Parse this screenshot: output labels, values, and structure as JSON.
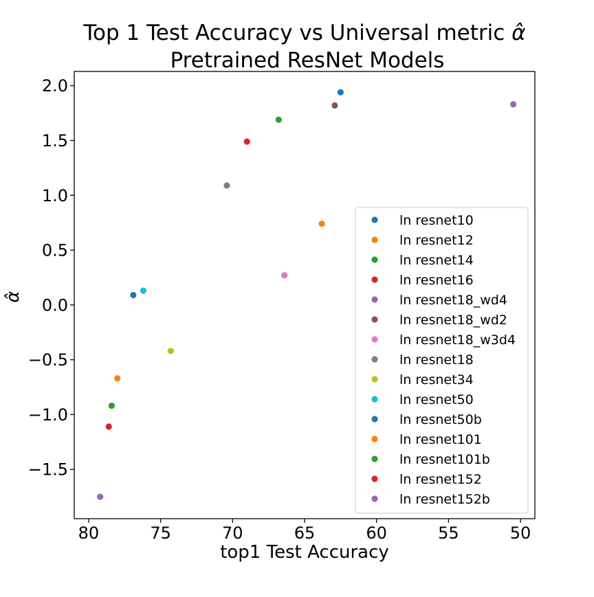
{
  "chart_data": {
    "type": "scatter",
    "title_line1": "Top 1 Test Accuracy vs Universal metric ",
    "title_symbol": "α̂",
    "title_line2": "Pretrained ResNet Models",
    "xlabel": "top1 Test Accuracy",
    "ylabel": "α̂",
    "xlim": [
      81.0,
      49.0
    ],
    "ylim": [
      -1.95,
      2.13
    ],
    "x_inverted": true,
    "xticks": [
      80,
      75,
      70,
      65,
      60,
      55,
      50
    ],
    "xtick_labels": [
      "80",
      "75",
      "70",
      "65",
      "60",
      "55",
      "50"
    ],
    "yticks": [
      2.0,
      1.5,
      1.0,
      0.5,
      0.0,
      -0.5,
      -1.0,
      -1.5
    ],
    "ytick_labels": [
      "2.0",
      "1.5",
      "1.0",
      "0.5",
      "0.0",
      "−0.5",
      "−1.0",
      "−1.5"
    ],
    "grid": false,
    "legend_position": "lower right",
    "series": [
      {
        "name": "ln resnet10",
        "color": "#1f77b4",
        "x": [
          62.5
        ],
        "y": [
          1.94
        ]
      },
      {
        "name": "ln resnet12",
        "color": "#ff7f0e",
        "x": [
          63.8
        ],
        "y": [
          0.74
        ]
      },
      {
        "name": "ln resnet14",
        "color": "#2ca02c",
        "x": [
          66.8
        ],
        "y": [
          1.69
        ]
      },
      {
        "name": "ln resnet16",
        "color": "#d62728",
        "x": [
          69.0
        ],
        "y": [
          1.49
        ]
      },
      {
        "name": "ln resnet18_wd4",
        "color": "#9467bd",
        "x": [
          50.5
        ],
        "y": [
          1.83
        ]
      },
      {
        "name": "ln resnet18_wd2",
        "color": "#8c564b",
        "x": [
          62.9
        ],
        "y": [
          1.82
        ]
      },
      {
        "name": "ln resnet18_w3d4",
        "color": "#e377c2",
        "x": [
          66.4
        ],
        "y": [
          0.27
        ]
      },
      {
        "name": "ln resnet18",
        "color": "#7f7f7f",
        "x": [
          70.4
        ],
        "y": [
          1.09
        ]
      },
      {
        "name": "ln resnet34",
        "color": "#bcbd22",
        "x": [
          74.3
        ],
        "y": [
          -0.42
        ]
      },
      {
        "name": "ln resnet50",
        "color": "#17becf",
        "x": [
          76.2
        ],
        "y": [
          0.13
        ]
      },
      {
        "name": "ln resnet50b",
        "color": "#1f77b4",
        "x": [
          76.9
        ],
        "y": [
          0.09
        ]
      },
      {
        "name": "ln resnet101",
        "color": "#ff7f0e",
        "x": [
          78.0
        ],
        "y": [
          -0.67
        ]
      },
      {
        "name": "ln resnet101b",
        "color": "#2ca02c",
        "x": [
          78.4
        ],
        "y": [
          -0.92
        ]
      },
      {
        "name": "ln resnet152",
        "color": "#d62728",
        "x": [
          78.6
        ],
        "y": [
          -1.11
        ]
      },
      {
        "name": "ln resnet152b",
        "color": "#9467bd",
        "x": [
          79.2
        ],
        "y": [
          -1.75
        ]
      }
    ]
  }
}
